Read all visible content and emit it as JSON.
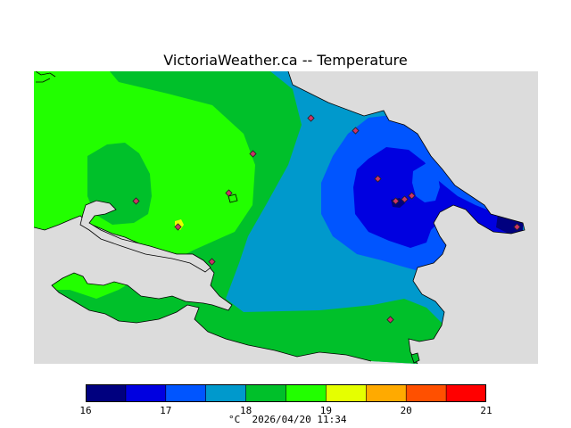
{
  "title": "VictoriaWeather.ca -- Temperature",
  "legend": {
    "ticks": [
      "16",
      "17",
      "18",
      "19",
      "20",
      "21"
    ],
    "colors": [
      "#00007f",
      "#0000e0",
      "#0055ff",
      "#0099cc",
      "#00c02a",
      "#22ff00",
      "#e5ff00",
      "#ffaa00",
      "#ff5000",
      "#ff0000"
    ],
    "unit_label": "°C",
    "timestamp": "2026/04/20 11:34"
  },
  "map": {
    "background_color": "#dcdcdc",
    "station_color": "#cc3366"
  }
}
